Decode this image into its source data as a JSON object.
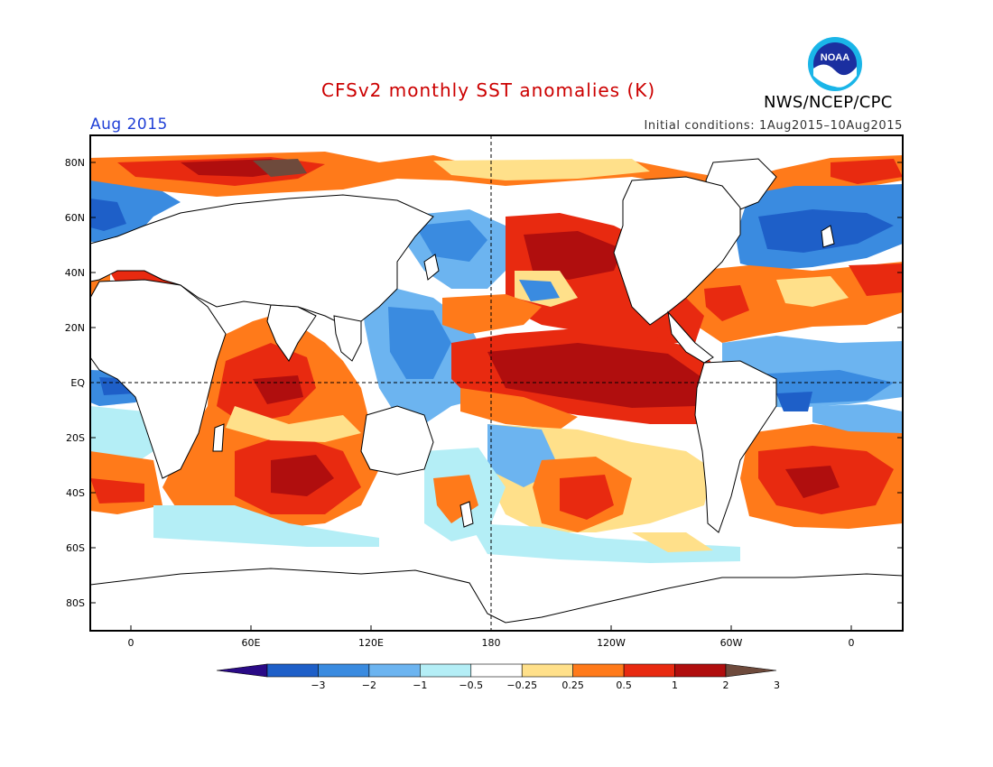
{
  "header": {
    "title": "CFSv2 monthly SST anomalies (K)",
    "month": "Aug 2015",
    "initial_conditions": "Initial conditions: 1Aug2015–10Aug2015",
    "agency": "NWS/NCEP/CPC",
    "logo_text": "NOAA"
  },
  "axes": {
    "lat_ticks": [
      "80N",
      "60N",
      "40N",
      "20N",
      "EQ",
      "20S",
      "40S",
      "60S",
      "80S"
    ],
    "lon_ticks": [
      "0",
      "60E",
      "120E",
      "180",
      "120W",
      "60W",
      "0"
    ]
  },
  "colorbar": {
    "labels": [
      "−3",
      "−2",
      "−1",
      "−0.5",
      "−0.25",
      "0.25",
      "0.5",
      "1",
      "2",
      "3"
    ],
    "colors": [
      "#2a0a86",
      "#1e5fc8",
      "#3a8be0",
      "#6cb4f0",
      "#b4eef6",
      "#ffffff",
      "#ffe08a",
      "#ff7a1a",
      "#e82a10",
      "#b00e0e",
      "#6e4a3c"
    ]
  },
  "colors": {
    "land": "#ffffff",
    "coast": "#000000",
    "gridline": "#555555"
  }
}
